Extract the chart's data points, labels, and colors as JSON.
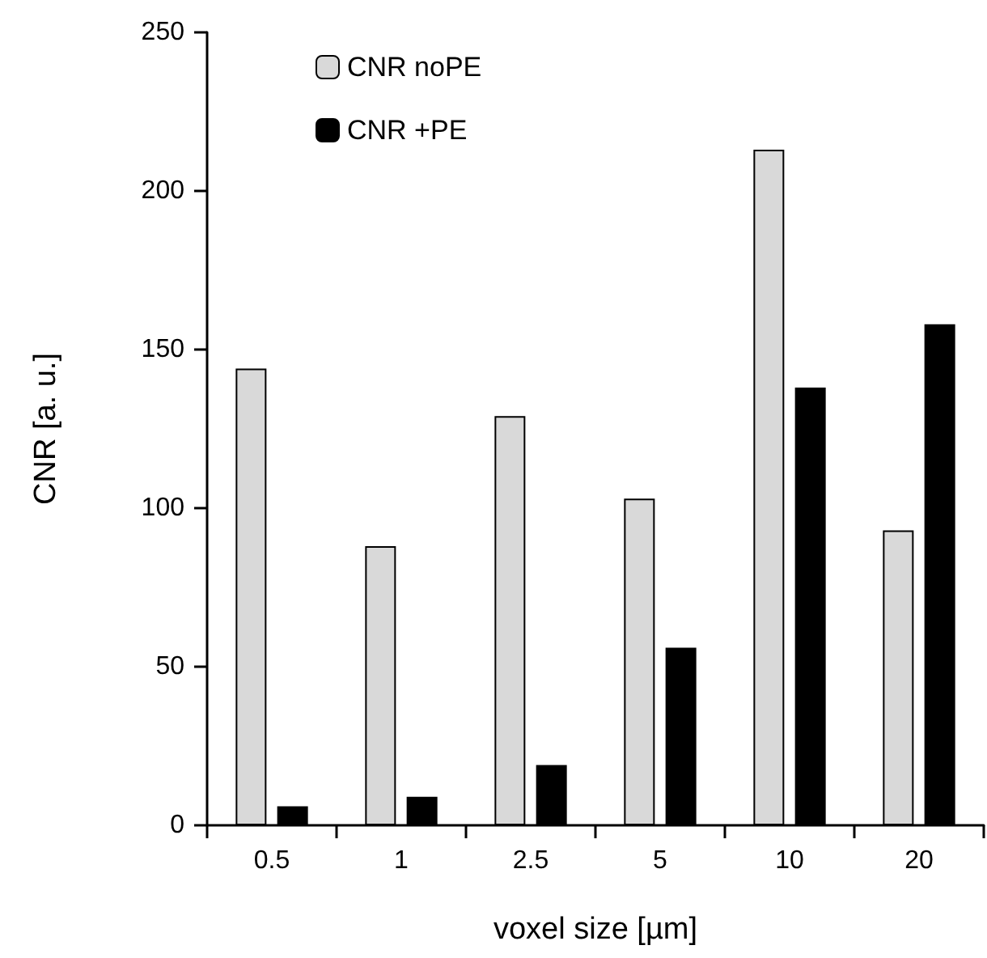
{
  "chart_data": {
    "type": "bar",
    "xlabel": "voxel size [µm]",
    "ylabel": "CNR [a. u.]",
    "categories": [
      "0.5",
      "1",
      "2.5",
      "5",
      "10",
      "20"
    ],
    "series": [
      {
        "name": "CNR noPE",
        "color": "#d9d9d9",
        "values": [
          144,
          88,
          129,
          103,
          213,
          93
        ]
      },
      {
        "name": "CNR +PE",
        "color": "#000000",
        "values": [
          6,
          9,
          19,
          56,
          138,
          158
        ]
      }
    ],
    "ylim": [
      0,
      250
    ],
    "yticks": [
      0,
      50,
      100,
      150,
      200,
      250
    ],
    "grid": false,
    "legend": "top left"
  }
}
